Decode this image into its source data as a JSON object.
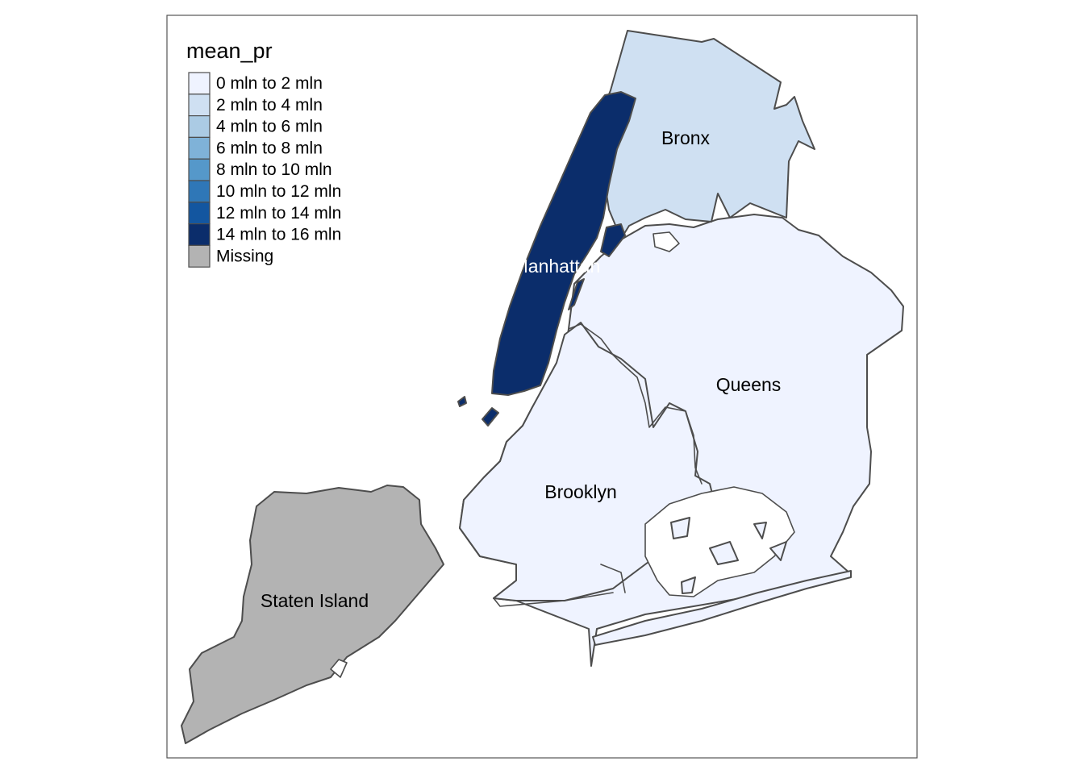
{
  "legend": {
    "title": "mean_pr",
    "items": [
      {
        "label": "0 mln to 2 mln",
        "color": "#eff3ff"
      },
      {
        "label": "2 mln to 4 mln",
        "color": "#cfe0f2"
      },
      {
        "label": "4 mln to 6 mln",
        "color": "#abcbe4"
      },
      {
        "label": "6 mln to 8 mln",
        "color": "#7fb2d8"
      },
      {
        "label": "8 mln to 10 mln",
        "color": "#5598ca"
      },
      {
        "label": "10 mln to 12 mln",
        "color": "#2f77b7"
      },
      {
        "label": "12 mln to 14 mln",
        "color": "#1356a0"
      },
      {
        "label": "14 mln to 16 mln",
        "color": "#0b2d6b"
      },
      {
        "label": "Missing",
        "color": "#b3b3b3"
      }
    ]
  },
  "boroughs": {
    "manhattan": {
      "label": "Manhattan",
      "class": "14 mln to 16 mln",
      "color": "#0b2d6b",
      "label_color": "#ffffff"
    },
    "bronx": {
      "label": "Bronx",
      "class": "2 mln to 4 mln",
      "color": "#cfe0f2",
      "label_color": "#000000"
    },
    "queens": {
      "label": "Queens",
      "class": "0 mln to 2 mln",
      "color": "#eff3ff",
      "label_color": "#000000"
    },
    "brooklyn": {
      "label": "Brooklyn",
      "class": "0 mln to 2 mln",
      "color": "#eff3ff",
      "label_color": "#000000"
    },
    "staten_island": {
      "label": "Staten Island",
      "class": "Missing",
      "color": "#b3b3b3",
      "label_color": "#000000"
    }
  }
}
